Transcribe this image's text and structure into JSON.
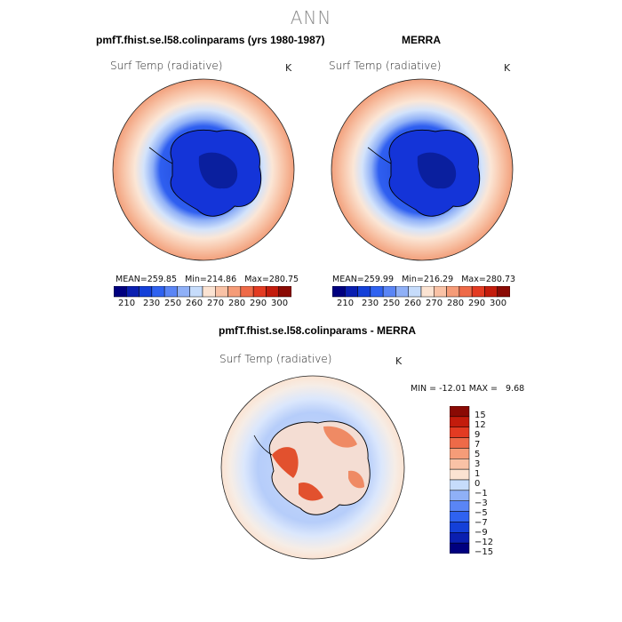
{
  "figure": {
    "title": "ANN"
  },
  "panels": [
    {
      "title": "pmfT.fhist.se.l58.colinparams (yrs 1980-1987)",
      "variable": "Surf Temp (radiative)",
      "units": "K",
      "mean_label": "MEAN=",
      "mean": "259.85",
      "min_label": "Min=",
      "min": "214.86",
      "max_label": "Max=",
      "max": "280.75"
    },
    {
      "title": "MERRA",
      "variable": "Surf Temp (radiative)",
      "units": "K",
      "mean_label": "MEAN=",
      "mean": "259.99",
      "min_label": "Min=",
      "min": "216.29",
      "max_label": "Max=",
      "max": "280.73"
    }
  ],
  "diff_panel": {
    "title": "pmfT.fhist.se.l58.colinparams - MERRA",
    "variable": "Surf Temp (radiative)",
    "units": "K",
    "min_label": "MIN =",
    "min": "-12.01",
    "max_label": "MAX =",
    "max": "9.68"
  },
  "abs_colorbar": {
    "colors": [
      "#00007f",
      "#0a1fb0",
      "#1440d8",
      "#2f62f0",
      "#5a85f5",
      "#8fb0f7",
      "#c6dcfb",
      "#fbe3d2",
      "#f9c2a6",
      "#f59c78",
      "#ee6a48",
      "#e33b22",
      "#c31c0c",
      "#8a0a04"
    ],
    "tick_labels": [
      "210",
      "230",
      "250",
      "260",
      "270",
      "280",
      "290",
      "300"
    ]
  },
  "diff_colorbar": {
    "colors": [
      "#00007f",
      "#0a1fb0",
      "#1440d8",
      "#2f62f0",
      "#5a85f5",
      "#8fb0f7",
      "#c6dcfb",
      "#fbe3d2",
      "#f9c2a6",
      "#f59c78",
      "#ee6a48",
      "#e33b22",
      "#c31c0c",
      "#8a0a04"
    ],
    "tick_labels": [
      "15",
      "12",
      "9",
      "7",
      "5",
      "3",
      "1",
      "0",
      "−1",
      "−3",
      "−5",
      "−7",
      "−9",
      "−12",
      "−15"
    ]
  },
  "chart_data": {
    "type": "heatmap",
    "projection": "south polar stereographic",
    "maps": [
      {
        "name": "pmfT.fhist.se.l58.colinparams (yrs 1980-1987)",
        "variable": "Surf Temp (radiative)",
        "units": "K",
        "mean": 259.85,
        "min": 214.86,
        "max": 280.75
      },
      {
        "name": "MERRA",
        "variable": "Surf Temp (radiative)",
        "units": "K",
        "mean": 259.99,
        "min": 216.29,
        "max": 280.73
      },
      {
        "name": "pmfT.fhist.se.l58.colinparams - MERRA",
        "variable": "Surf Temp (radiative)",
        "units": "K",
        "min": -12.01,
        "max": 9.68
      }
    ],
    "abs_levels": [
      210,
      230,
      250,
      260,
      270,
      280,
      290,
      300
    ],
    "diff_levels": [
      -15,
      -12,
      -9,
      -7,
      -5,
      -3,
      -1,
      0,
      1,
      3,
      5,
      7,
      9,
      12,
      15
    ]
  }
}
